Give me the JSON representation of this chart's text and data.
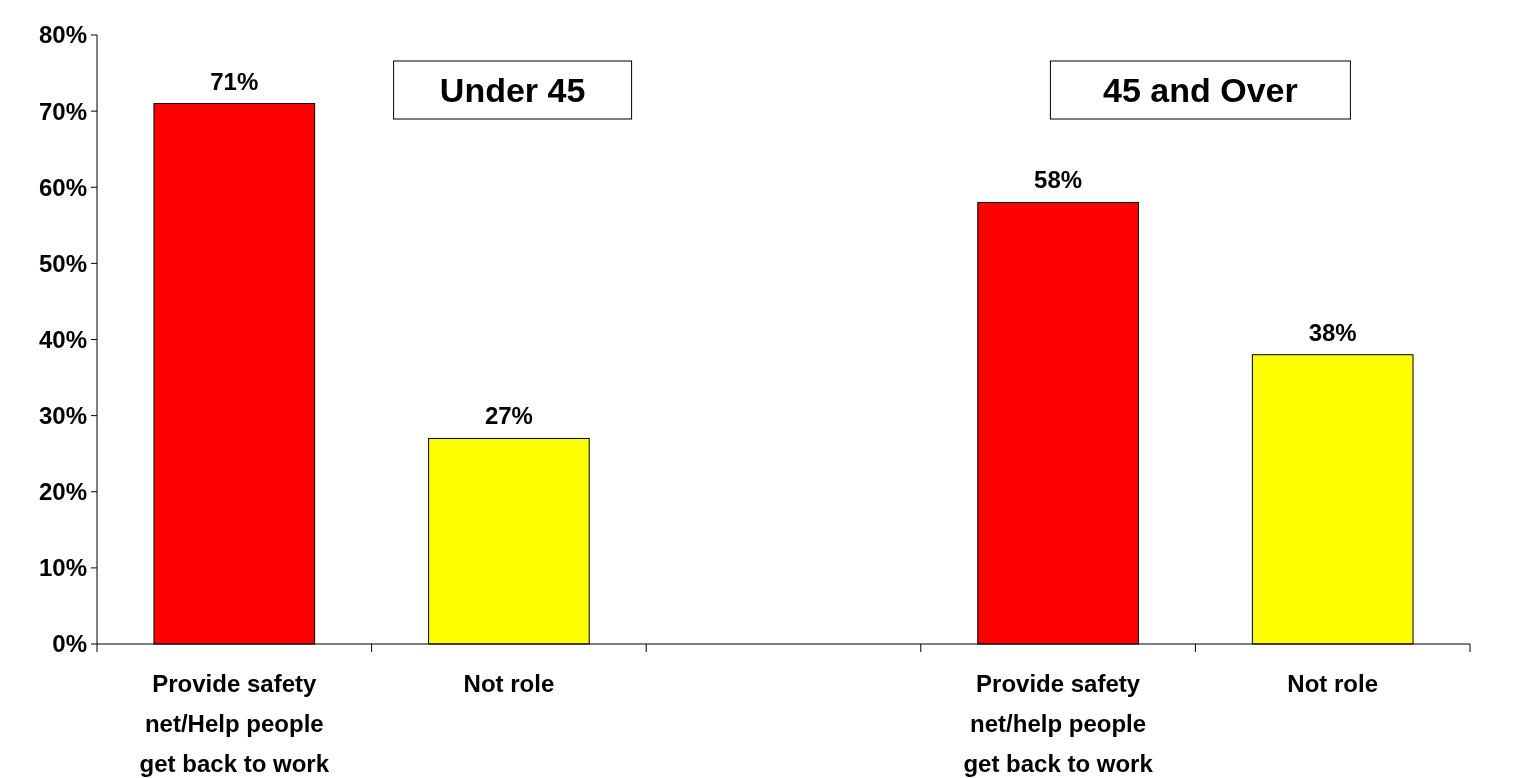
{
  "chart_data": {
    "type": "bar",
    "categories": [
      "Provide safety net/Help people get back to work",
      "Not role",
      null,
      "Provide safety net/help people get back to work",
      "Not role"
    ],
    "values": [
      71,
      27,
      null,
      58,
      38
    ],
    "colors": [
      "#ff0000",
      "#ffff00",
      null,
      "#ff0000",
      "#ffff00"
    ],
    "value_labels": [
      "71%",
      "27%",
      null,
      "58%",
      "38%"
    ],
    "ylim": [
      0,
      80
    ],
    "yticks": [
      {
        "value": 0,
        "label": "0%"
      },
      {
        "value": 10,
        "label": "10%"
      },
      {
        "value": 20,
        "label": "20%"
      },
      {
        "value": 30,
        "label": "30%"
      },
      {
        "value": 40,
        "label": "40%"
      },
      {
        "value": 50,
        "label": "50%"
      },
      {
        "value": 60,
        "label": "60%"
      },
      {
        "value": 70,
        "label": "70%"
      },
      {
        "value": 80,
        "label": "80%"
      }
    ],
    "annotations": [
      "Under 45",
      "45 and Over"
    ],
    "grid": false
  }
}
